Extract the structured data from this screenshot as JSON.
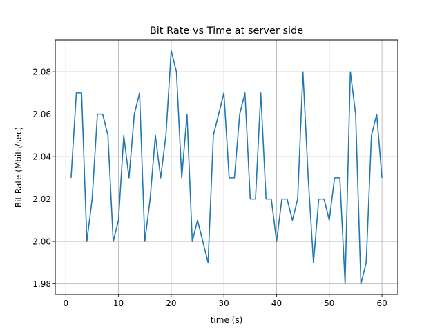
{
  "chart_data": {
    "type": "line",
    "title": "Bit Rate vs Time at server side",
    "xlabel": "time (s)",
    "ylabel": "Bit Rate (Mbits/sec)",
    "xlim": [
      -2,
      63
    ],
    "ylim": [
      1.975,
      2.095
    ],
    "xticks": [
      0,
      10,
      20,
      30,
      40,
      50,
      60
    ],
    "yticks": [
      1.98,
      2.0,
      2.02,
      2.04,
      2.06,
      2.08
    ],
    "xtick_labels": [
      "0",
      "10",
      "20",
      "30",
      "40",
      "50",
      "60"
    ],
    "ytick_labels": [
      "1.98",
      "2.00",
      "2.02",
      "2.04",
      "2.06",
      "2.08"
    ],
    "grid": true,
    "line_color": "#1f77b4",
    "x": [
      1,
      2,
      3,
      4,
      5,
      6,
      7,
      8,
      9,
      10,
      11,
      12,
      13,
      14,
      15,
      16,
      17,
      18,
      19,
      20,
      21,
      22,
      23,
      24,
      25,
      26,
      27,
      28,
      29,
      30,
      31,
      32,
      33,
      34,
      35,
      36,
      37,
      38,
      39,
      40,
      41,
      42,
      43,
      44,
      45,
      46,
      47,
      48,
      49,
      50,
      51,
      52,
      53,
      54,
      55,
      56,
      57,
      58,
      59,
      60
    ],
    "series": [
      {
        "values": [
          2.03,
          2.07,
          2.07,
          2.0,
          2.02,
          2.06,
          2.06,
          2.05,
          2.0,
          2.01,
          2.05,
          2.03,
          2.06,
          2.07,
          2.0,
          2.02,
          2.05,
          2.03,
          2.05,
          2.09,
          2.08,
          2.03,
          2.06,
          2.0,
          2.01,
          2.0,
          1.99,
          2.05,
          2.06,
          2.07,
          2.03,
          2.03,
          2.06,
          2.07,
          2.02,
          2.02,
          2.07,
          2.02,
          2.02,
          2.0,
          2.02,
          2.02,
          2.01,
          2.02,
          2.08,
          2.03,
          1.99,
          2.02,
          2.02,
          2.01,
          2.03,
          2.03,
          1.98,
          2.08,
          2.06,
          1.98,
          1.99,
          2.05,
          2.06,
          2.03
        ]
      }
    ]
  }
}
